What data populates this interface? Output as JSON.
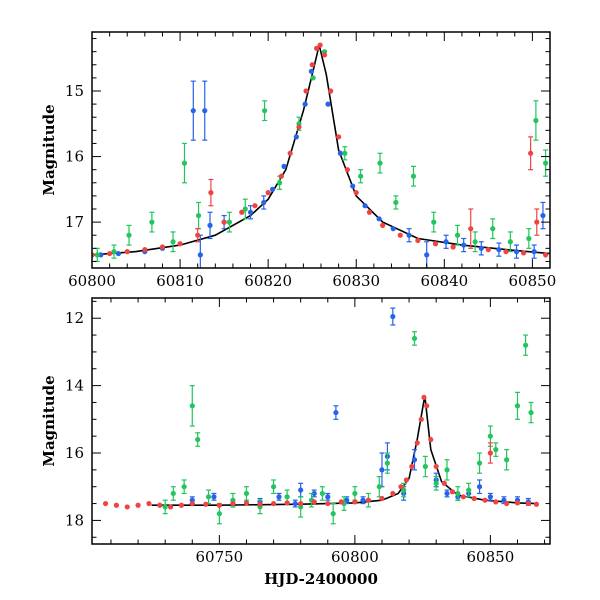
{
  "chart_data": [
    {
      "type": "scatter",
      "panel": "top",
      "xlabel": "",
      "ylabel": "Magnitude",
      "xlim": [
        60800,
        60852
      ],
      "ylim": [
        17.7,
        14.1
      ],
      "y_inverted": true,
      "x_ticks": [
        60800,
        60810,
        60820,
        60830,
        60840,
        60850
      ],
      "x_tick_labels": [
        "60800",
        "60810",
        "60820",
        "60830",
        "60840",
        "60850"
      ],
      "y_ticks": [
        15,
        16,
        17
      ],
      "y_tick_labels": [
        "15",
        "16",
        "17"
      ],
      "grid": false,
      "model_curve": {
        "color": "#000000",
        "x": [
          60800,
          60805,
          60810,
          60814,
          60818,
          60820,
          60822,
          60824,
          60825,
          60825.8,
          60826.6,
          60828,
          60830,
          60833,
          60837,
          60842,
          60847,
          60852
        ],
        "y": [
          17.5,
          17.45,
          17.35,
          17.2,
          16.9,
          16.65,
          16.2,
          15.3,
          14.75,
          14.3,
          14.75,
          15.9,
          16.6,
          17.0,
          17.25,
          17.35,
          17.42,
          17.48
        ]
      },
      "series": [
        {
          "color": "#2563eb",
          "x": [
            60801,
            60803,
            60806,
            60808,
            60811.5,
            60812.3,
            60812.8,
            60813.4,
            60815,
            60818,
            60819.5,
            60820.5,
            60821.8,
            60823.2,
            60824.2,
            60824.9,
            60826.8,
            60828.2,
            60829.6,
            60831,
            60832.6,
            60834.2,
            60836,
            60838,
            60840.2,
            60842.2,
            60844.2,
            60846.2,
            60848.2,
            60850.2,
            60851.2
          ],
          "y": [
            17.5,
            17.48,
            17.45,
            17.4,
            15.3,
            17.5,
            15.3,
            17.05,
            17.0,
            16.85,
            16.7,
            16.5,
            16.15,
            15.7,
            15.2,
            14.7,
            15.2,
            15.95,
            16.45,
            16.75,
            16.95,
            17.1,
            17.2,
            17.5,
            17.3,
            17.35,
            17.4,
            17.42,
            17.45,
            17.45,
            16.9
          ],
          "yerr": [
            0.05,
            0.05,
            0.05,
            0.05,
            0.45,
            0.3,
            0.45,
            0.2,
            0.1,
            0.1,
            0.1,
            0.05,
            0.05,
            0.05,
            0.05,
            0.05,
            0.05,
            0.05,
            0.05,
            0.05,
            0.05,
            0.05,
            0.1,
            0.2,
            0.1,
            0.1,
            0.1,
            0.1,
            0.1,
            0.1,
            0.2
          ]
        },
        {
          "color": "#22c55e",
          "x": [
            60800.6,
            60802.5,
            60804.2,
            60806.8,
            60809.2,
            60810.5,
            60812.1,
            60815.6,
            60817.4,
            60819.6,
            60821.3,
            60823.5,
            60825.1,
            60826.4,
            60828.7,
            60830.5,
            60832.7,
            60834.5,
            60836.5,
            60838.8,
            60841.5,
            60843.5,
            60845.5,
            60847.5,
            60849.6,
            60850.4,
            60851.5
          ],
          "y": [
            17.5,
            17.45,
            17.2,
            17.0,
            17.3,
            16.1,
            16.9,
            17.0,
            16.8,
            15.3,
            16.4,
            15.5,
            14.8,
            14.4,
            15.95,
            16.3,
            16.1,
            16.7,
            16.3,
            17.0,
            17.2,
            17.3,
            17.1,
            17.3,
            17.25,
            15.45,
            16.1
          ],
          "yerr": [
            0.1,
            0.1,
            0.15,
            0.15,
            0.15,
            0.3,
            0.2,
            0.15,
            0.15,
            0.15,
            0.1,
            0.1,
            0.05,
            0.05,
            0.1,
            0.1,
            0.15,
            0.1,
            0.15,
            0.15,
            0.15,
            0.15,
            0.15,
            0.15,
            0.15,
            0.3,
            0.2
          ]
        },
        {
          "color": "#ef4444",
          "x": [
            60800,
            60802,
            60804,
            60806,
            60808,
            60810,
            60812,
            60813.5,
            60815,
            60817,
            60818.5,
            60820,
            60821.5,
            60822.5,
            60823.5,
            60824.3,
            60825,
            60825.5,
            60825.9,
            60826.4,
            60827.1,
            60828,
            60829,
            60830,
            60831.5,
            60833,
            60835,
            60837,
            60839,
            60841,
            60843,
            60845,
            60847,
            60849,
            60849.8,
            60850.5,
            60851.5
          ],
          "y": [
            17.5,
            17.48,
            17.45,
            17.42,
            17.38,
            17.33,
            17.2,
            16.55,
            17.0,
            16.85,
            16.75,
            16.55,
            16.3,
            15.95,
            15.55,
            15.0,
            14.6,
            14.35,
            14.3,
            14.45,
            15.0,
            15.7,
            16.2,
            16.55,
            16.85,
            17.05,
            17.2,
            17.28,
            17.33,
            17.38,
            17.1,
            17.42,
            17.45,
            17.47,
            15.95,
            17.0,
            17.5
          ],
          "yerr": [
            0.05,
            0.05,
            0.05,
            0.05,
            0.05,
            0.05,
            0.1,
            0.2,
            0.05,
            0.05,
            0.05,
            0.05,
            0.05,
            0.05,
            0.05,
            0.05,
            0.05,
            0.05,
            0.05,
            0.05,
            0.05,
            0.05,
            0.05,
            0.05,
            0.05,
            0.05,
            0.05,
            0.05,
            0.05,
            0.05,
            0.3,
            0.05,
            0.05,
            0.05,
            0.25,
            0.2,
            0.05
          ]
        }
      ]
    },
    {
      "type": "scatter",
      "panel": "bottom",
      "xlabel": "HJD-2400000",
      "ylabel": "Magnitude",
      "xlim": [
        60703,
        60872
      ],
      "ylim": [
        18.7,
        11.4
      ],
      "y_inverted": true,
      "x_ticks": [
        60750,
        60800,
        60850
      ],
      "x_tick_labels": [
        "60750",
        "60800",
        "60850"
      ],
      "y_ticks": [
        12,
        14,
        16,
        18
      ],
      "y_tick_labels": [
        "12",
        "14",
        "16",
        "18"
      ],
      "grid": false,
      "model_curve": {
        "color": "#000000",
        "x": [
          60725,
          60750,
          60780,
          60800,
          60810,
          60816,
          60820,
          60823,
          60825.8,
          60828,
          60832,
          60838,
          60848,
          60860,
          60867
        ],
        "y": [
          17.55,
          17.55,
          17.52,
          17.48,
          17.4,
          17.2,
          16.75,
          15.6,
          14.3,
          15.9,
          16.85,
          17.25,
          17.4,
          17.48,
          17.5
        ]
      },
      "series": [
        {
          "color": "#2563eb",
          "x": [
            60740,
            60748,
            60755,
            60765,
            60772,
            60778,
            60780,
            60785,
            60790,
            60793,
            60797,
            60803,
            60810,
            60812,
            60814,
            60818,
            60822,
            60830,
            60834,
            60838,
            60842,
            60846,
            60850,
            60855,
            60860,
            60864
          ],
          "y": [
            17.4,
            17.3,
            17.5,
            17.45,
            17.3,
            17.5,
            17.1,
            17.2,
            17.3,
            14.8,
            17.4,
            17.4,
            16.5,
            16.1,
            11.95,
            17.2,
            16.2,
            16.8,
            17.2,
            17.3,
            17.2,
            17.0,
            17.3,
            17.4,
            17.4,
            17.45
          ],
          "yerr": [
            0.1,
            0.1,
            0.1,
            0.1,
            0.1,
            0.1,
            0.2,
            0.1,
            0.1,
            0.2,
            0.1,
            0.1,
            0.5,
            0.4,
            0.25,
            0.2,
            0.3,
            0.2,
            0.1,
            0.1,
            0.1,
            0.2,
            0.1,
            0.1,
            0.1,
            0.1
          ]
        },
        {
          "color": "#22c55e",
          "x": [
            60730,
            60733,
            60737,
            60740,
            60742,
            60746,
            60750,
            60755,
            60760,
            60765,
            60770,
            60775,
            60780,
            60784,
            60788,
            60792,
            60796,
            60800,
            60805,
            60809,
            60812,
            60818,
            60822,
            60826,
            60830,
            60834,
            60838,
            60842,
            60846,
            60850,
            60852,
            60856,
            60860,
            60863,
            60865
          ],
          "y": [
            17.6,
            17.2,
            17.0,
            14.6,
            15.6,
            17.3,
            17.8,
            17.4,
            17.2,
            17.6,
            17.0,
            17.3,
            17.6,
            17.4,
            17.2,
            17.8,
            17.5,
            17.2,
            17.4,
            17.0,
            16.3,
            17.1,
            12.6,
            16.4,
            16.9,
            16.5,
            17.2,
            17.1,
            16.3,
            15.5,
            15.9,
            16.2,
            14.6,
            12.8,
            14.8
          ],
          "yerr": [
            0.2,
            0.2,
            0.2,
            0.6,
            0.2,
            0.2,
            0.3,
            0.2,
            0.2,
            0.2,
            0.2,
            0.2,
            0.3,
            0.2,
            0.2,
            0.3,
            0.2,
            0.2,
            0.2,
            0.3,
            0.3,
            0.2,
            0.2,
            0.3,
            0.2,
            0.3,
            0.2,
            0.2,
            0.3,
            0.3,
            0.2,
            0.3,
            0.4,
            0.3,
            0.3
          ]
        },
        {
          "color": "#ef4444",
          "x": [
            60708,
            60712,
            60716,
            60720,
            60724,
            60728,
            60732,
            60736,
            60740,
            60745,
            60750,
            60755,
            60760,
            60765,
            60770,
            60775,
            60780,
            60785,
            60790,
            60795,
            60800,
            60805,
            60810,
            60814,
            60817,
            60819,
            60821,
            60823,
            60824.5,
            60825.5,
            60826.5,
            60828,
            60830,
            60833,
            60836,
            60840,
            60844,
            60848,
            60850,
            60852,
            60856,
            60860,
            60864,
            60867
          ],
          "y": [
            17.5,
            17.55,
            17.6,
            17.55,
            17.5,
            17.55,
            17.6,
            17.55,
            17.5,
            17.52,
            17.55,
            17.5,
            17.48,
            17.52,
            17.5,
            17.48,
            17.5,
            17.45,
            17.5,
            17.45,
            17.45,
            17.4,
            17.35,
            17.2,
            17.0,
            16.8,
            16.4,
            15.7,
            15.0,
            14.35,
            14.6,
            15.6,
            16.4,
            16.9,
            17.15,
            17.3,
            17.35,
            17.4,
            16.0,
            17.45,
            17.5,
            17.48,
            17.5,
            17.52
          ],
          "yerr": [
            0.05,
            0.05,
            0.05,
            0.05,
            0.05,
            0.05,
            0.05,
            0.05,
            0.05,
            0.05,
            0.05,
            0.05,
            0.05,
            0.05,
            0.05,
            0.05,
            0.05,
            0.05,
            0.05,
            0.05,
            0.05,
            0.05,
            0.05,
            0.05,
            0.05,
            0.05,
            0.05,
            0.05,
            0.05,
            0.05,
            0.05,
            0.05,
            0.05,
            0.05,
            0.05,
            0.05,
            0.05,
            0.05,
            0.3,
            0.05,
            0.05,
            0.05,
            0.05,
            0.05
          ]
        }
      ]
    }
  ]
}
